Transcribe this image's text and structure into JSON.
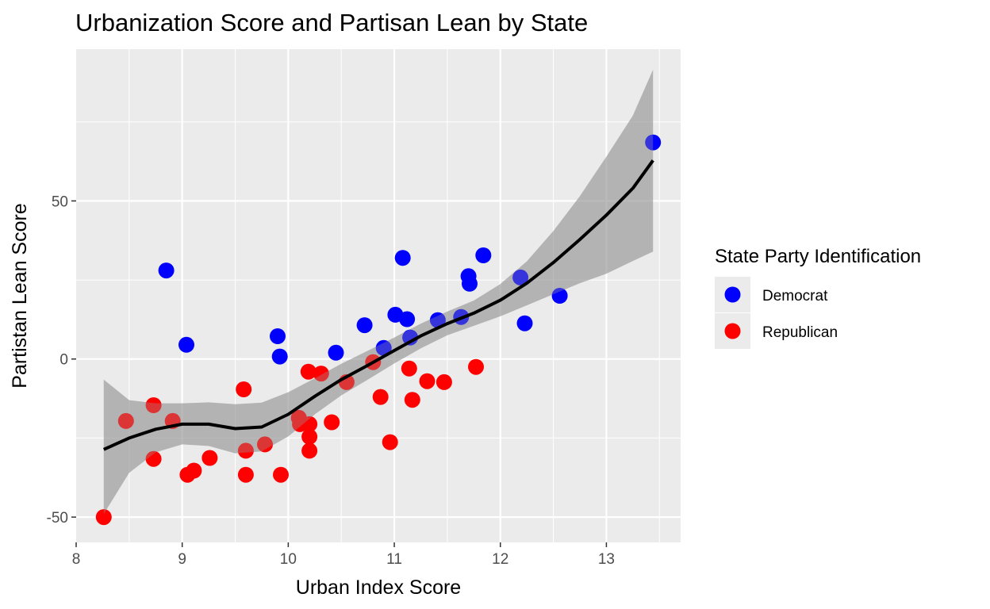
{
  "chart_data": {
    "type": "scatter",
    "title": "Urbanization Score and Partisan Lean by State",
    "xlabel": "Urban Index Score",
    "ylabel": "Partistan Lean Score",
    "xlim": [
      8.0,
      13.7
    ],
    "ylim": [
      -58,
      98
    ],
    "x_ticks": [
      8,
      9,
      10,
      11,
      12,
      13
    ],
    "y_ticks": [
      -50,
      0,
      50
    ],
    "grid": true,
    "legend": {
      "title": "State Party Identification",
      "position": "right",
      "entries": [
        {
          "label": "Democrat",
          "color": "#0000ff"
        },
        {
          "label": "Republican",
          "color": "#ff0000"
        }
      ]
    },
    "series": [
      {
        "name": "Democrat",
        "color": "#0000ff",
        "points": [
          [
            8.85,
            28.0
          ],
          [
            9.04,
            4.5
          ],
          [
            9.9,
            7.2
          ],
          [
            9.92,
            0.8
          ],
          [
            10.45,
            2.0
          ],
          [
            10.72,
            10.7
          ],
          [
            10.9,
            3.5
          ],
          [
            11.01,
            14.0
          ],
          [
            11.08,
            32.0
          ],
          [
            11.12,
            12.6
          ],
          [
            11.15,
            6.8
          ],
          [
            11.41,
            12.3
          ],
          [
            11.63,
            13.3
          ],
          [
            11.7,
            26.2
          ],
          [
            11.71,
            23.8
          ],
          [
            11.84,
            32.8
          ],
          [
            12.19,
            25.8
          ],
          [
            12.23,
            11.3
          ],
          [
            12.56,
            20.0
          ],
          [
            13.44,
            68.5
          ]
        ]
      },
      {
        "name": "Republican",
        "color": "#ff0000",
        "points": [
          [
            8.26,
            -50.0
          ],
          [
            8.47,
            -19.6
          ],
          [
            8.73,
            -14.6
          ],
          [
            8.73,
            -31.6
          ],
          [
            8.91,
            -19.6
          ],
          [
            9.05,
            -36.6
          ],
          [
            9.11,
            -35.3
          ],
          [
            9.26,
            -31.3
          ],
          [
            9.58,
            -9.6
          ],
          [
            9.6,
            -29.0
          ],
          [
            9.6,
            -36.6
          ],
          [
            9.78,
            -27.0
          ],
          [
            9.93,
            -36.6
          ],
          [
            10.1,
            -18.6
          ],
          [
            10.11,
            -20.6
          ],
          [
            10.19,
            -4.0
          ],
          [
            10.2,
            -20.6
          ],
          [
            10.2,
            -24.6
          ],
          [
            10.2,
            -29.0
          ],
          [
            10.31,
            -4.6
          ],
          [
            10.41,
            -20.0
          ],
          [
            10.55,
            -7.3
          ],
          [
            10.8,
            -1.0
          ],
          [
            10.87,
            -12.0
          ],
          [
            10.96,
            -26.3
          ],
          [
            11.14,
            -3.0
          ],
          [
            11.17,
            -12.9
          ],
          [
            11.31,
            -7.0
          ],
          [
            11.47,
            -7.3
          ],
          [
            11.77,
            -2.5
          ]
        ]
      }
    ],
    "smooth_fit": {
      "color": "#000000",
      "band_color": "#999999",
      "x": [
        8.26,
        8.5,
        8.75,
        9.0,
        9.25,
        9.5,
        9.75,
        10.0,
        10.25,
        10.5,
        10.75,
        11.0,
        11.25,
        11.5,
        11.75,
        12.0,
        12.25,
        12.5,
        12.75,
        13.0,
        13.25,
        13.44
      ],
      "y": [
        -28.6,
        -25.0,
        -22.2,
        -20.6,
        -20.6,
        -22.0,
        -21.5,
        -17.5,
        -11.8,
        -6.5,
        -2.0,
        2.7,
        7.3,
        11.2,
        14.5,
        18.6,
        24.0,
        30.5,
        37.8,
        45.5,
        54.0,
        62.8
      ],
      "lower": [
        -49.0,
        -36.0,
        -29.5,
        -27.0,
        -27.5,
        -29.8,
        -29.2,
        -24.5,
        -17.5,
        -11.5,
        -6.5,
        -1.4,
        3.4,
        7.5,
        10.5,
        13.5,
        17.0,
        20.5,
        24.0,
        27.0,
        31.0,
        34.0
      ],
      "upper": [
        -6.5,
        -13.0,
        -14.0,
        -14.0,
        -13.7,
        -14.3,
        -13.8,
        -10.5,
        -6.1,
        -1.5,
        2.6,
        6.8,
        11.2,
        15.0,
        18.5,
        23.7,
        30.9,
        40.5,
        51.5,
        64.0,
        77.0,
        91.5
      ]
    }
  }
}
